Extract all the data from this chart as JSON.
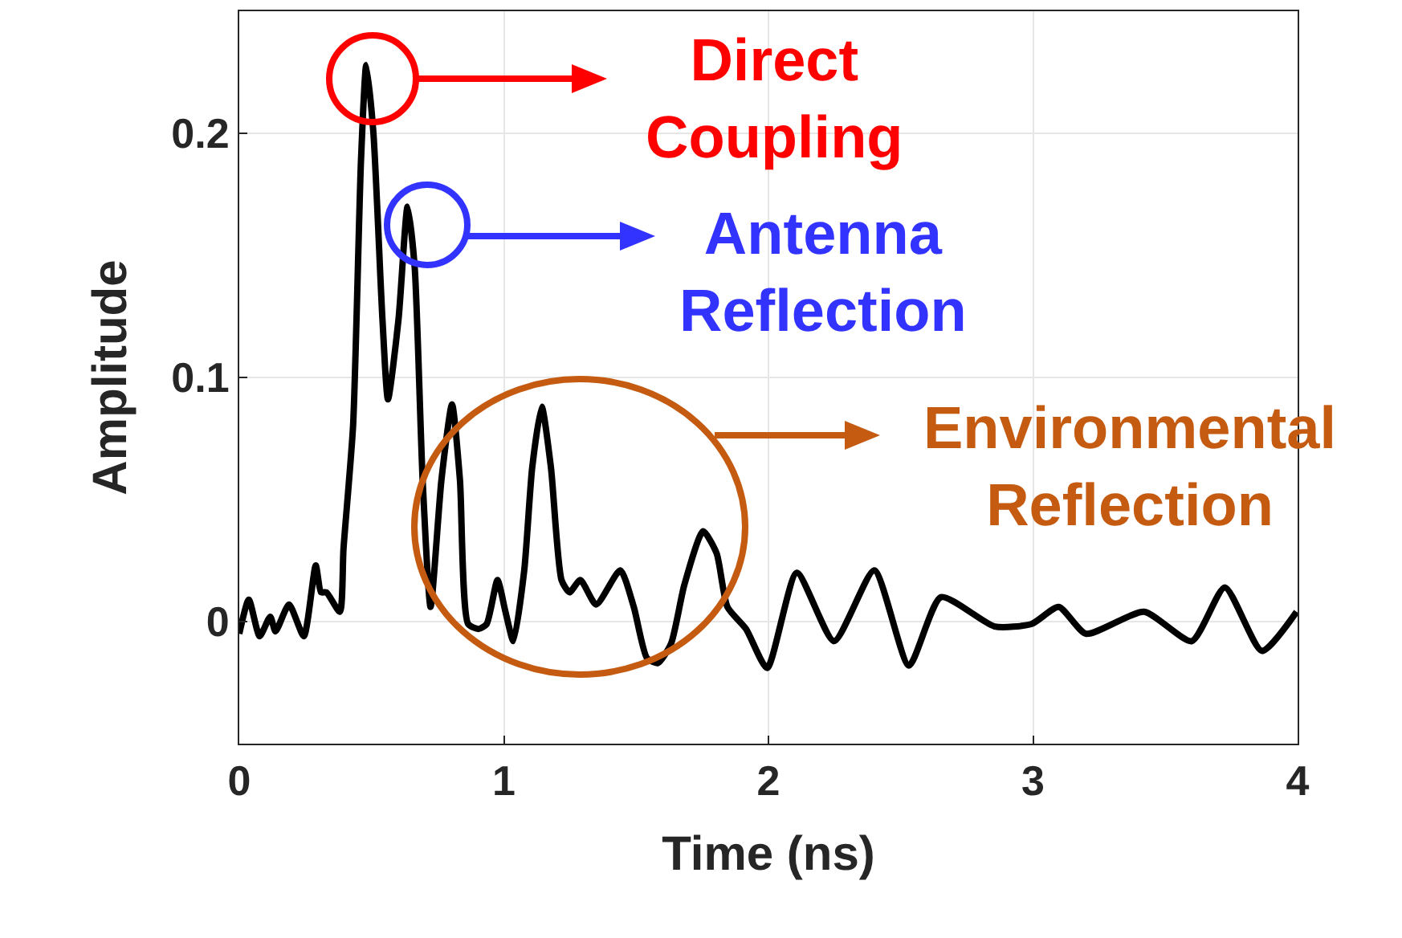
{
  "chart_data": {
    "type": "line",
    "xlabel": "Time (ns)",
    "ylabel": "Amplitude",
    "xlim": [
      0,
      4
    ],
    "ylim": [
      -0.05,
      0.25
    ],
    "xticks": [
      0,
      1,
      2,
      3,
      4
    ],
    "yticks": [
      0,
      0.1,
      0.2
    ],
    "grid": true,
    "line_style": "solid",
    "marker": "none",
    "series": [
      {
        "color": "#000000",
        "x": [
          0,
          0.036,
          0.077,
          0.117,
          0.137,
          0.188,
          0.244,
          0.289,
          0.309,
          0.329,
          0.38,
          0.394,
          0.43,
          0.46,
          0.48,
          0.507,
          0.541,
          0.562,
          0.602,
          0.636,
          0.663,
          0.693,
          0.723,
          0.764,
          0.804,
          0.834,
          0.865,
          0.905,
          0.935,
          0.976,
          1.006,
          1.036,
          1.077,
          1.107,
          1.143,
          1.178,
          1.218,
          1.248,
          1.289,
          1.349,
          1.44,
          1.491,
          1.541,
          1.582,
          1.632,
          1.682,
          1.753,
          1.804,
          1.845,
          1.915,
          1.995,
          2.107,
          2.248,
          2.4,
          2.531,
          2.652,
          2.855,
          2.994,
          3.097,
          3.2,
          3.42,
          3.6,
          3.725,
          3.865,
          3.996
        ],
        "values": [
          -0.005,
          0.009,
          -0.006,
          0.002,
          -0.004,
          0.007,
          -0.006,
          0.023,
          0.012,
          0.012,
          0.004,
          0.03,
          0.08,
          0.189,
          0.228,
          0.2,
          0.124,
          0.091,
          0.124,
          0.17,
          0.145,
          0.058,
          0.006,
          0.058,
          0.089,
          0.058,
          -0.001,
          -0.003,
          -0.001,
          0.017,
          0.004,
          -0.008,
          0.021,
          0.063,
          0.088,
          0.063,
          0.017,
          0.012,
          0.017,
          0.007,
          0.021,
          0.006,
          -0.015,
          -0.017,
          -0.009,
          0.015,
          0.037,
          0.028,
          0.006,
          -0.003,
          -0.019,
          0.02,
          -0.008,
          0.021,
          -0.018,
          0.01,
          -0.002,
          -0.001,
          0.006,
          -0.005,
          0.004,
          -0.008,
          0.014,
          -0.012,
          0.004
        ]
      }
    ],
    "annotations": [
      "Direct\nCoupling",
      "Antenna\nReflection",
      "Environmental\nReflection"
    ]
  }
}
